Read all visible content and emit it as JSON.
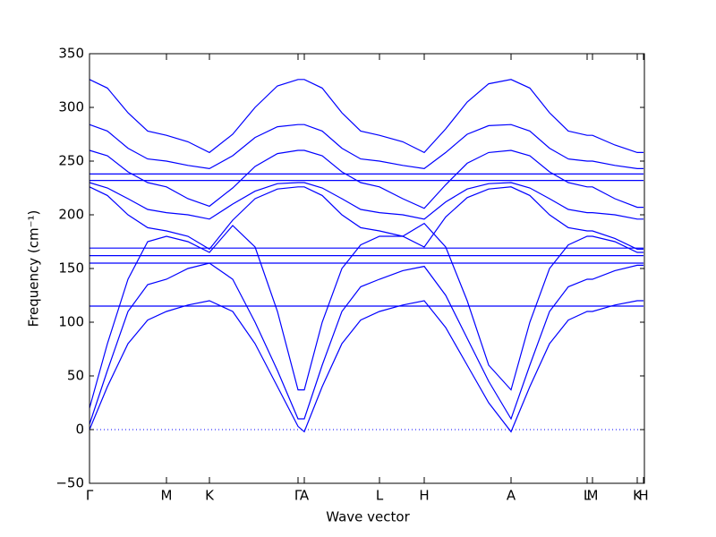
{
  "chart_data": {
    "type": "line",
    "x_label": "Wave vector",
    "y_label": "Frequency (cm⁻¹)",
    "xlim": [
      0,
      620
    ],
    "ylim": [
      -50,
      350
    ],
    "yticks": [
      {
        "value": -50,
        "label": "−50"
      },
      0,
      50,
      100,
      150,
      200,
      250,
      300,
      350
    ],
    "xticks": [
      {
        "value": 0,
        "label": "Γ"
      },
      {
        "value": 86,
        "label": "M"
      },
      {
        "value": 134,
        "label": "K"
      },
      {
        "value": 233,
        "label": "Γ"
      },
      {
        "value": 240,
        "label": "A"
      },
      {
        "value": 324,
        "label": "L"
      },
      {
        "value": 374,
        "label": "H"
      },
      {
        "value": 471,
        "label": "A"
      },
      {
        "value": 556,
        "label": "L"
      },
      {
        "value": 562,
        "label": "M"
      },
      {
        "value": 612,
        "label": "K"
      },
      {
        "value": 619,
        "label": "H"
      }
    ],
    "reference_lines": [
      0
    ],
    "x": [
      0,
      20,
      43,
      65,
      86,
      110,
      134,
      160,
      185,
      210,
      233,
      240,
      260,
      282,
      303,
      324,
      350,
      374,
      398,
      422,
      446,
      471,
      492,
      514,
      535,
      556,
      562,
      587,
      612,
      619
    ],
    "series": [
      {
        "color": "#0000ff",
        "values": [
          0,
          40,
          80,
          102,
          110,
          116,
          120,
          110,
          80,
          40,
          3,
          -2,
          40,
          80,
          102,
          110,
          116,
          120,
          95,
          60,
          25,
          -2,
          40,
          80,
          102,
          110,
          110,
          116,
          120,
          120
        ]
      },
      {
        "color": "#0000ff",
        "values": [
          5,
          55,
          110,
          135,
          140,
          150,
          155,
          140,
          100,
          55,
          10,
          10,
          60,
          110,
          133,
          140,
          148,
          152,
          125,
          85,
          45,
          10,
          60,
          110,
          133,
          140,
          140,
          148,
          153,
          153
        ]
      },
      {
        "color": "#0000ff",
        "values": [
          20,
          80,
          140,
          175,
          180,
          175,
          165,
          190,
          170,
          110,
          37,
          37,
          100,
          150,
          172,
          180,
          180,
          192,
          170,
          120,
          60,
          37,
          100,
          150,
          172,
          180,
          180,
          175,
          165,
          165
        ]
      },
      {
        "color": "#0000ff",
        "values": [
          115,
          115,
          115,
          115,
          115,
          115,
          115,
          115,
          115,
          115,
          115,
          115,
          115,
          115,
          115,
          115,
          115,
          115,
          115,
          115,
          115,
          115,
          115,
          115,
          115,
          115,
          115,
          115,
          115,
          115
        ]
      },
      {
        "color": "#0000ff",
        "values": [
          155,
          155,
          155,
          155,
          155,
          155,
          155,
          155,
          155,
          155,
          155,
          155,
          155,
          155,
          155,
          155,
          155,
          155,
          155,
          155,
          155,
          155,
          155,
          155,
          155,
          155,
          155,
          155,
          155,
          155
        ]
      },
      {
        "color": "#0000ff",
        "values": [
          162,
          162,
          162,
          162,
          162,
          162,
          162,
          162,
          162,
          162,
          162,
          162,
          162,
          162,
          162,
          162,
          162,
          162,
          162,
          162,
          162,
          162,
          162,
          162,
          162,
          162,
          162,
          162,
          162,
          162
        ]
      },
      {
        "color": "#0000ff",
        "values": [
          169,
          169,
          169,
          169,
          169,
          169,
          169,
          169,
          169,
          169,
          169,
          169,
          169,
          169,
          169,
          169,
          169,
          169,
          169,
          169,
          169,
          169,
          169,
          169,
          169,
          169,
          169,
          169,
          169,
          169
        ]
      },
      {
        "color": "#0000ff",
        "values": [
          232,
          232,
          232,
          232,
          232,
          232,
          232,
          232,
          232,
          232,
          232,
          232,
          232,
          232,
          232,
          232,
          232,
          232,
          232,
          232,
          232,
          232,
          232,
          232,
          232,
          232,
          232,
          232,
          232,
          232
        ]
      },
      {
        "color": "#0000ff",
        "values": [
          238,
          238,
          238,
          238,
          238,
          238,
          238,
          238,
          238,
          238,
          238,
          238,
          238,
          238,
          238,
          238,
          238,
          238,
          238,
          238,
          238,
          238,
          238,
          238,
          238,
          238,
          238,
          238,
          238,
          238
        ]
      },
      {
        "color": "#0000ff",
        "values": [
          326,
          318,
          295,
          278,
          274,
          268,
          258,
          275,
          300,
          320,
          326,
          326,
          318,
          295,
          278,
          274,
          268,
          258,
          280,
          305,
          322,
          326,
          318,
          295,
          278,
          274,
          274,
          265,
          258,
          258
        ]
      },
      {
        "color": "#0000ff",
        "values": [
          284,
          278,
          262,
          252,
          250,
          246,
          243,
          255,
          272,
          282,
          284,
          284,
          278,
          262,
          252,
          250,
          246,
          243,
          258,
          275,
          283,
          284,
          278,
          262,
          252,
          250,
          250,
          246,
          243,
          243
        ]
      },
      {
        "color": "#0000ff",
        "values": [
          260,
          255,
          240,
          230,
          226,
          215,
          208,
          225,
          245,
          257,
          260,
          260,
          255,
          240,
          230,
          226,
          215,
          206,
          228,
          248,
          258,
          260,
          255,
          240,
          230,
          226,
          226,
          215,
          207,
          207
        ]
      },
      {
        "color": "#0000ff",
        "values": [
          230,
          225,
          215,
          205,
          202,
          200,
          196,
          210,
          222,
          229,
          230,
          230,
          225,
          215,
          205,
          202,
          200,
          196,
          212,
          224,
          229,
          230,
          225,
          215,
          205,
          202,
          202,
          200,
          196,
          196
        ]
      },
      {
        "color": "#0000ff",
        "values": [
          226,
          218,
          200,
          188,
          185,
          180,
          168,
          195,
          215,
          224,
          226,
          226,
          218,
          200,
          188,
          185,
          180,
          170,
          198,
          216,
          224,
          226,
          218,
          200,
          188,
          185,
          185,
          178,
          168,
          168
        ]
      }
    ]
  }
}
